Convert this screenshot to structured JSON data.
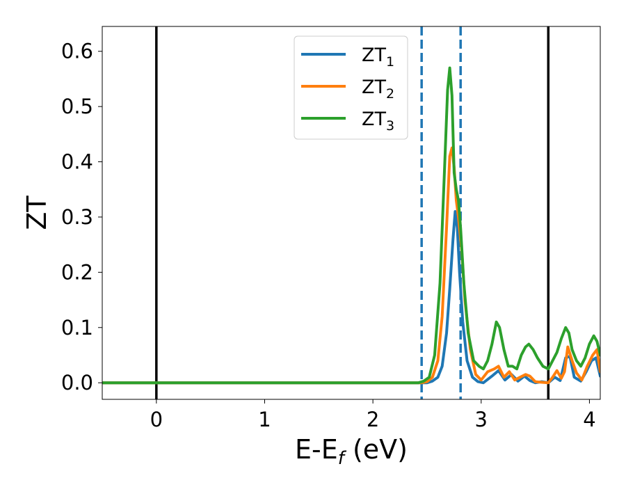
{
  "chart_data": {
    "type": "line",
    "xlabel": "E-E",
    "xlabel_sub": "f",
    "xlabel_unit": " (eV)",
    "ylabel": "ZT",
    "xlim": [
      -0.5,
      4.1
    ],
    "ylim": [
      -0.03,
      0.645
    ],
    "xticks": [
      0,
      1,
      2,
      3,
      4
    ],
    "xtick_labels": [
      "0",
      "1",
      "2",
      "3",
      "4"
    ],
    "yticks": [
      0.0,
      0.1,
      0.2,
      0.3,
      0.4,
      0.5,
      0.6
    ],
    "ytick_labels": [
      "0.0",
      "0.1",
      "0.2",
      "0.3",
      "0.4",
      "0.5",
      "0.6"
    ],
    "grid": false,
    "legend_position": "top-center",
    "vlines": [
      {
        "x": 0.0,
        "color": "#000000",
        "style": "solid"
      },
      {
        "x": 3.62,
        "color": "#000000",
        "style": "solid"
      },
      {
        "x": 2.45,
        "color": "#1f77b4",
        "style": "dashed"
      },
      {
        "x": 2.81,
        "color": "#1f77b4",
        "style": "dashed"
      }
    ],
    "series": [
      {
        "name": "ZT",
        "name_sub": "1",
        "color": "#1f77b4",
        "x": [
          -0.5,
          2.5,
          2.55,
          2.6,
          2.64,
          2.68,
          2.71,
          2.74,
          2.76,
          2.78,
          2.8,
          2.83,
          2.87,
          2.92,
          2.97,
          3.02,
          3.1,
          3.16,
          3.22,
          3.28,
          3.34,
          3.4,
          3.45,
          3.5,
          3.56,
          3.62,
          3.68,
          3.73,
          3.78,
          3.82,
          3.86,
          3.92,
          3.97,
          4.02,
          4.06,
          4.1
        ],
        "y": [
          0.0,
          0.0,
          0.003,
          0.01,
          0.03,
          0.09,
          0.17,
          0.26,
          0.31,
          0.28,
          0.2,
          0.11,
          0.04,
          0.01,
          0.002,
          0.0,
          0.012,
          0.022,
          0.005,
          0.015,
          0.003,
          0.012,
          0.004,
          0.0,
          0.002,
          0.0,
          0.01,
          0.004,
          0.045,
          0.048,
          0.01,
          0.003,
          0.02,
          0.04,
          0.045,
          0.012
        ]
      },
      {
        "name": "ZT",
        "name_sub": "2",
        "color": "#ff7f0e",
        "x": [
          -0.5,
          2.45,
          2.5,
          2.55,
          2.6,
          2.64,
          2.68,
          2.71,
          2.73,
          2.75,
          2.77,
          2.79,
          2.82,
          2.85,
          2.9,
          2.95,
          3.0,
          3.06,
          3.12,
          3.16,
          3.21,
          3.26,
          3.31,
          3.36,
          3.41,
          3.45,
          3.5,
          3.55,
          3.62,
          3.66,
          3.7,
          3.74,
          3.77,
          3.8,
          3.84,
          3.88,
          3.93,
          3.98,
          4.03,
          4.07,
          4.1
        ],
        "y": [
          0.0,
          0.0,
          0.002,
          0.01,
          0.04,
          0.12,
          0.28,
          0.41,
          0.425,
          0.39,
          0.33,
          0.3,
          0.24,
          0.15,
          0.06,
          0.015,
          0.005,
          0.02,
          0.025,
          0.03,
          0.01,
          0.02,
          0.005,
          0.01,
          0.015,
          0.012,
          0.002,
          0.001,
          0.0,
          0.01,
          0.022,
          0.008,
          0.02,
          0.065,
          0.04,
          0.018,
          0.005,
          0.03,
          0.05,
          0.06,
          0.02
        ]
      },
      {
        "name": "ZT",
        "name_sub": "3",
        "color": "#2ca02c",
        "x": [
          -0.5,
          2.42,
          2.47,
          2.52,
          2.57,
          2.62,
          2.66,
          2.69,
          2.71,
          2.73,
          2.75,
          2.77,
          2.79,
          2.81,
          2.84,
          2.88,
          2.93,
          2.98,
          3.02,
          3.06,
          3.1,
          3.14,
          3.17,
          3.21,
          3.25,
          3.29,
          3.33,
          3.37,
          3.41,
          3.44,
          3.48,
          3.52,
          3.57,
          3.62,
          3.66,
          3.7,
          3.74,
          3.78,
          3.81,
          3.84,
          3.88,
          3.92,
          3.96,
          4.0,
          4.04,
          4.07,
          4.1
        ],
        "y": [
          0.0,
          0.0,
          0.003,
          0.01,
          0.05,
          0.18,
          0.38,
          0.53,
          0.57,
          0.52,
          0.38,
          0.35,
          0.33,
          0.28,
          0.18,
          0.09,
          0.04,
          0.03,
          0.025,
          0.04,
          0.07,
          0.11,
          0.1,
          0.06,
          0.03,
          0.03,
          0.025,
          0.05,
          0.065,
          0.07,
          0.06,
          0.045,
          0.03,
          0.025,
          0.04,
          0.055,
          0.08,
          0.1,
          0.09,
          0.06,
          0.04,
          0.03,
          0.045,
          0.07,
          0.085,
          0.075,
          0.05
        ]
      }
    ]
  }
}
